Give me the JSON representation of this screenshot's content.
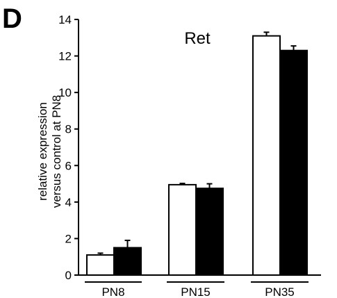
{
  "panel_label": "D",
  "chart_data": {
    "type": "bar",
    "title": "Ret",
    "ylabel_lines": [
      "relative expression",
      "versus control at PN8"
    ],
    "xlabel": "",
    "categories": [
      "PN8",
      "PN15",
      "PN35"
    ],
    "ylim": [
      0,
      14
    ],
    "yticks": [
      0,
      2,
      4,
      6,
      8,
      10,
      12,
      14
    ],
    "grid": false,
    "legend": "none",
    "series": [
      {
        "fill": "#ffffff",
        "values": [
          1.1,
          4.95,
          13.1
        ],
        "errors": [
          0.1,
          0.07,
          0.2
        ]
      },
      {
        "fill": "#000000",
        "values": [
          1.5,
          4.75,
          12.3
        ],
        "errors": [
          0.4,
          0.25,
          0.25
        ]
      }
    ]
  }
}
